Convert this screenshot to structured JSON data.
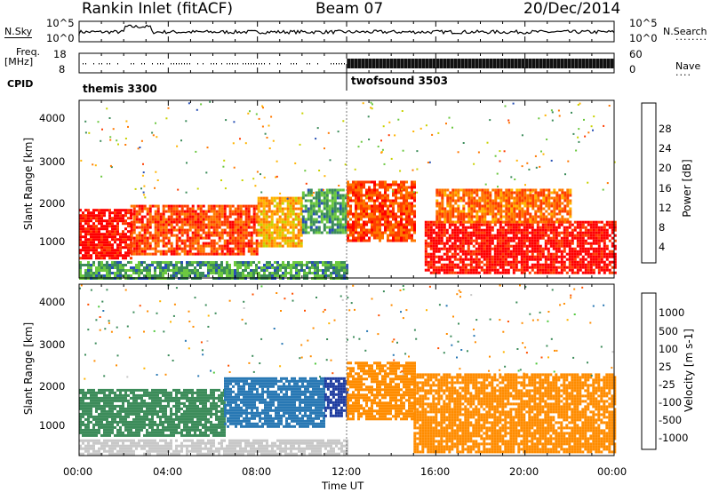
{
  "header": {
    "station": "Rankin Inlet (fitACF)",
    "beam": "Beam 07",
    "date": "20/Dec/2014"
  },
  "nsky_panel": {
    "left_label": "N.Sky",
    "right_label": "N.Search",
    "left_ticks": [
      "10^5",
      "10^0"
    ],
    "right_ticks": [
      "10^5",
      "10^0"
    ]
  },
  "freq_panel": {
    "left_label_line1": "Freq.",
    "left_label_line2": "[MHz]",
    "right_label": "Nave",
    "left_ticks": [
      "18",
      "8"
    ],
    "right_ticks": [
      "60",
      "0"
    ]
  },
  "cpid_panel": {
    "label": "CPID",
    "modes": [
      {
        "name": "themis 3300"
      },
      {
        "name": "twofsound 3503"
      }
    ]
  },
  "power_panel": {
    "ylabel": "Slant Range [km]",
    "yticks": [
      "4000",
      "3000",
      "2000",
      "1000"
    ],
    "colorbar_label": "Power [dB]",
    "colorbar_ticks": [
      "28",
      "24",
      "20",
      "16",
      "12",
      "8",
      "4"
    ],
    "colorbar_colors": [
      "#ff0000",
      "#ff3c00",
      "#ff7800",
      "#ffb400",
      "#c8d200",
      "#6cc840",
      "#3c8c5a",
      "#2850b4",
      "#0000ff"
    ]
  },
  "velocity_panel": {
    "ylabel": "Slant Range [km]",
    "yticks": [
      "4000",
      "3000",
      "2000",
      "1000"
    ],
    "colorbar_label": "Velocity [m s-1]",
    "colorbar_ticks": [
      "1000",
      "500",
      "100",
      "25",
      "-25",
      "-100",
      "-500",
      "-1000"
    ],
    "colorbar_colors": [
      "#1e3ca0",
      "#2878b4",
      "#3c8c5a",
      "#50c83c",
      "#c8c8c8",
      "#ffb400",
      "#ff8c00",
      "#ff5000",
      "#ff0000"
    ]
  },
  "xaxis": {
    "label": "Time UT",
    "ticks": [
      "00:00",
      "04:00",
      "08:00",
      "12:00",
      "16:00",
      "20:00",
      "00:00"
    ]
  },
  "chart_data": {
    "type": "heatmap",
    "title": "Rankin Inlet (fitACF) Beam 07 20/Dec/2014",
    "xlabel": "Time UT",
    "ylabel": "Slant Range [km]",
    "xlim_hours": [
      0,
      24
    ],
    "ylim_km": [
      180,
      4600
    ],
    "mode_change_hour": 12,
    "power_regions": [
      {
        "t0": 0.0,
        "t1": 2.3,
        "r0": 700,
        "r1": 1900,
        "power_db": 28
      },
      {
        "t0": 2.3,
        "t1": 8.0,
        "r0": 800,
        "r1": 2000,
        "power_db": 24
      },
      {
        "t0": 8.0,
        "t1": 10.0,
        "r0": 1000,
        "r1": 2200,
        "power_db": 18
      },
      {
        "t0": 10.0,
        "t1": 12.0,
        "r0": 1300,
        "r1": 2400,
        "power_db": 8
      },
      {
        "t0": 12.0,
        "t1": 15.0,
        "r0": 1100,
        "r1": 2600,
        "power_db": 24
      },
      {
        "t0": 15.5,
        "t1": 24.0,
        "r0": 300,
        "r1": 1600,
        "power_db": 28
      },
      {
        "t0": 16.0,
        "t1": 22.0,
        "r0": 1600,
        "r1": 2400,
        "power_db": 22
      },
      {
        "t0": 0.0,
        "t1": 12.0,
        "r0": 200,
        "r1": 600,
        "power_db": 8
      }
    ],
    "velocity_regions": [
      {
        "t0": 0.0,
        "t1": 6.5,
        "r0": 700,
        "r1": 1900,
        "velocity_ms": 100
      },
      {
        "t0": 6.5,
        "t1": 11.0,
        "r0": 900,
        "r1": 2200,
        "velocity_ms": 500
      },
      {
        "t0": 11.0,
        "t1": 12.0,
        "r0": 1200,
        "r1": 2200,
        "velocity_ms": 1000
      },
      {
        "t0": 12.0,
        "t1": 15.0,
        "r0": 1100,
        "r1": 2600,
        "velocity_ms": -100
      },
      {
        "t0": 15.0,
        "t1": 24.0,
        "r0": 300,
        "r1": 2300,
        "velocity_ms": -100
      },
      {
        "t0": 0.0,
        "t1": 12.0,
        "r0": 200,
        "r1": 600,
        "velocity_ms": 0
      }
    ]
  }
}
